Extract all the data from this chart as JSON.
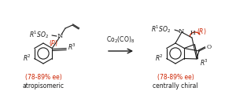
{
  "background_color": "#ffffff",
  "text_color": "#1a1a1a",
  "red_color": "#cc2200",
  "arrow_color": "#1a1a1a",
  "reagent_text": "Co$_2$(CO)$_8$",
  "left_label1": "(78-89% ee)",
  "left_label2": "atropisomeric",
  "right_label1": "(78-89% ee)",
  "right_label2": "centrally chiral",
  "figsize": [
    3.0,
    1.35
  ],
  "dpi": 100
}
